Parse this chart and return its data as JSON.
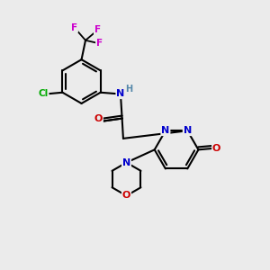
{
  "background_color": "#ebebeb",
  "bond_color": "#000000",
  "atom_colors": {
    "N": "#0000cc",
    "O": "#cc0000",
    "F": "#cc00cc",
    "Cl": "#00aa00",
    "NH": "#5588aa",
    "C": "#000000"
  },
  "figsize": [
    3.0,
    3.0
  ],
  "dpi": 100
}
